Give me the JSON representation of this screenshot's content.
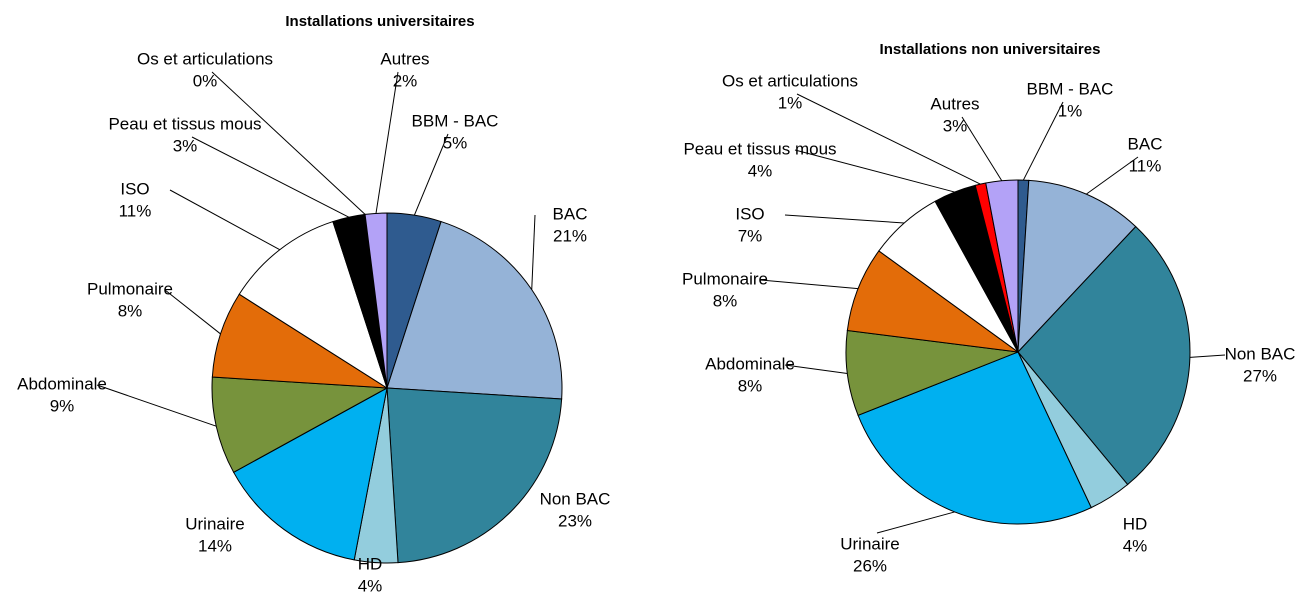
{
  "chart_data": [
    {
      "type": "pie",
      "title": "Installations universitaires",
      "categories": [
        "BBM - BAC",
        "BAC",
        "Non BAC",
        "HD",
        "Urinaire",
        "Abdominale",
        "Pulmonaire",
        "ISO",
        "Peau et tissus mous",
        "Os et articulations",
        "Autres"
      ],
      "values": [
        5,
        21,
        23,
        4,
        14,
        9,
        8,
        11,
        3,
        0,
        2
      ],
      "value_labels": [
        "5%",
        "21%",
        "23%",
        "4%",
        "14%",
        "9%",
        "8%",
        "11%",
        "3%",
        "0%",
        "2%"
      ],
      "colors": [
        "#2f5b8f",
        "#95b3d7",
        "#31849b",
        "#93cddd",
        "#00b0f0",
        "#77933c",
        "#e36c09",
        "#ffffff",
        "#000000",
        "#ff0000",
        "#b3a2f7"
      ]
    },
    {
      "type": "pie",
      "title": "Installations non universitaires",
      "categories": [
        "BBM - BAC",
        "BAC",
        "Non BAC",
        "HD",
        "Urinaire",
        "Abdominale",
        "Pulmonaire",
        "ISO",
        "Peau et tissus mous",
        "Os et articulations",
        "Autres"
      ],
      "values": [
        1,
        11,
        27,
        4,
        26,
        8,
        8,
        7,
        4,
        1,
        3
      ],
      "value_labels": [
        "1%",
        "11%",
        "27%",
        "4%",
        "26%",
        "8%",
        "8%",
        "7%",
        "4%",
        "1%",
        "3%"
      ],
      "colors": [
        "#2f5b8f",
        "#95b3d7",
        "#31849b",
        "#93cddd",
        "#00b0f0",
        "#77933c",
        "#e36c09",
        "#ffffff",
        "#000000",
        "#ff0000",
        "#b3a2f7"
      ]
    }
  ]
}
